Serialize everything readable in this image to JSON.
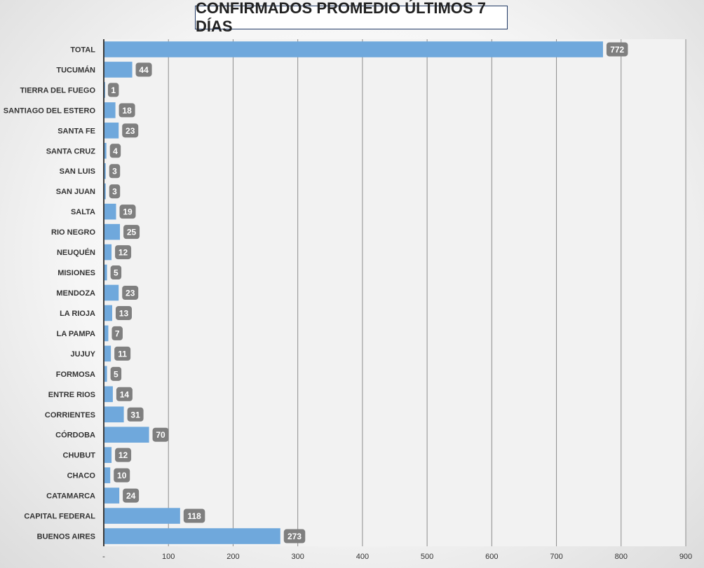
{
  "chart_data": {
    "type": "bar",
    "orientation": "horizontal",
    "title": "CONFIRMADOS PROMEDIO ÚLTIMOS 7 DÍAS",
    "categories": [
      "TOTAL",
      "TUCUMÁN",
      "TIERRA DEL FUEGO",
      "SANTIAGO DEL ESTERO",
      "SANTA FE",
      "SANTA CRUZ",
      "SAN LUIS",
      "SAN JUAN",
      "SALTA",
      "RIO NEGRO",
      "NEUQUÉN",
      "MISIONES",
      "MENDOZA",
      "LA RIOJA",
      "LA PAMPA",
      "JUJUY",
      "FORMOSA",
      "ENTRE RIOS",
      "CORRIENTES",
      "CÓRDOBA",
      "CHUBUT",
      "CHACO",
      "CATAMARCA",
      "CAPITAL FEDERAL",
      "BUENOS AIRES"
    ],
    "values": [
      772,
      44,
      1,
      18,
      23,
      4,
      3,
      3,
      19,
      25,
      12,
      5,
      23,
      13,
      7,
      11,
      5,
      14,
      31,
      70,
      12,
      10,
      24,
      118,
      273
    ],
    "xlim": [
      0,
      900
    ],
    "x_ticks": [
      "-",
      "100",
      "200",
      "300",
      "400",
      "500",
      "600",
      "700",
      "800",
      "900"
    ],
    "grid": true,
    "colors": {
      "bar": "#6fa8dc",
      "data_label_bg": "#7f7f7f",
      "data_label_text": "#ffffff",
      "grid": "#8c8c8c",
      "plot_bg": "#f2f2f2"
    }
  }
}
